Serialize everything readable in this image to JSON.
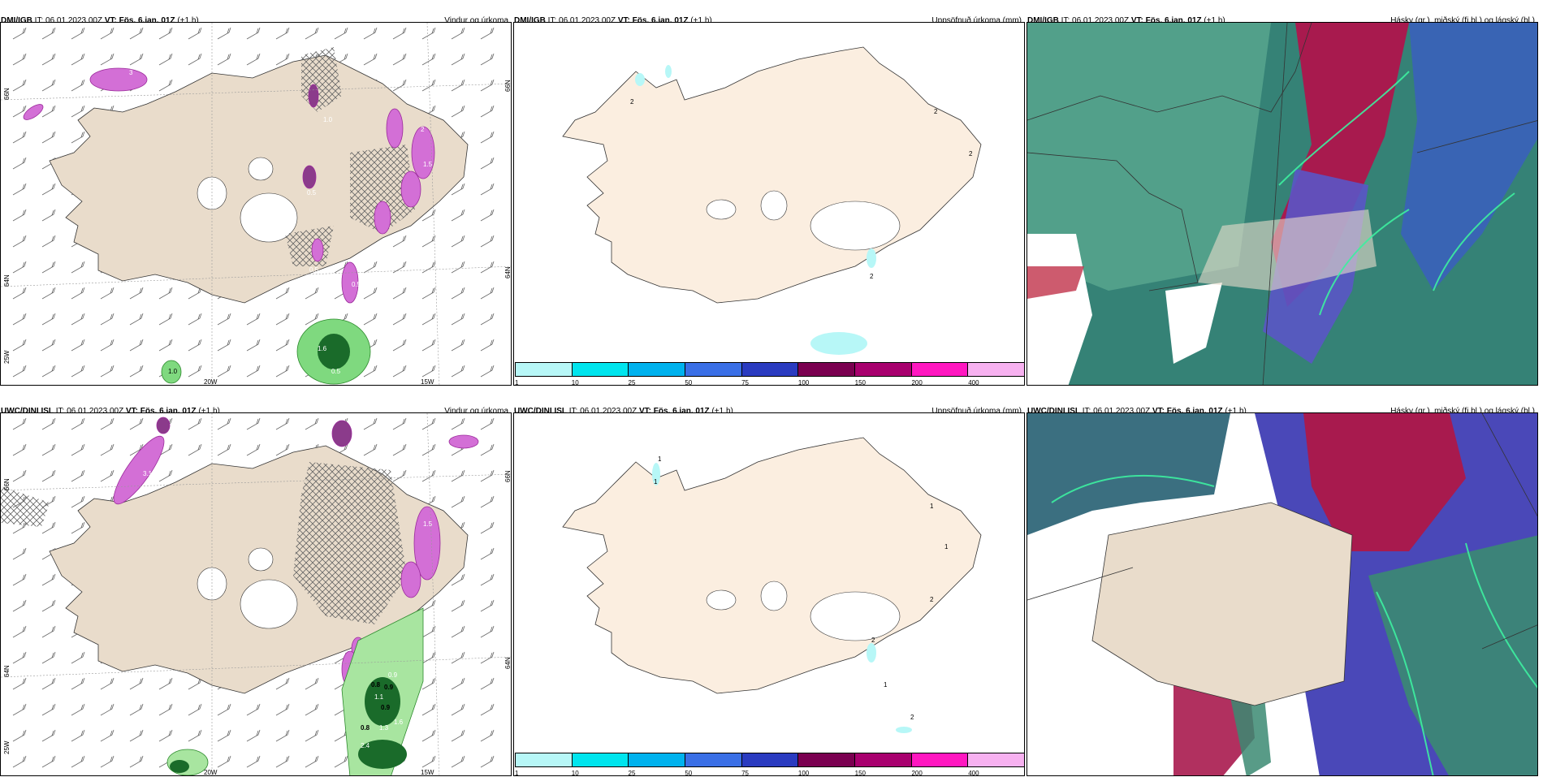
{
  "panels": [
    {
      "model": "DMI/IGB",
      "it_label": "IT:",
      "it_value": "06.01.2023 00Z",
      "vt_label": "VT:",
      "vt_value": "Fös. 6.jan. 01Z",
      "step": "(+1 h)",
      "title": "Vindur og úrkoma"
    },
    {
      "model": "DMI/IGB",
      "it_label": "IT:",
      "it_value": "06.01.2023 00Z",
      "vt_label": "VT:",
      "vt_value": "Fös. 6.jan. 01Z",
      "step": "(+1 h)",
      "title": "Uppsöfnuð úrkoma (mm)"
    },
    {
      "model": "DMI/IGB",
      "it_label": "IT:",
      "it_value": "06.01.2023 00Z",
      "vt_label": "VT:",
      "vt_value": "Fös. 6.jan. 01Z",
      "step": "(+1 h)",
      "title": "Hásky (gr.), miðský (fj.bl.) og lágský (bl.)"
    },
    {
      "model": "UWC/DINI ISL",
      "it_label": "IT:",
      "it_value": "06.01.2023 00Z",
      "vt_label": "VT:",
      "vt_value": "Fös. 6.jan. 01Z",
      "step": "(+1 h)",
      "title": "Vindur og úrkoma"
    },
    {
      "model": "UWC/DINI ISL",
      "it_label": "IT:",
      "it_value": "06.01.2023 00Z",
      "vt_label": "VT:",
      "vt_value": "Fös. 6.jan. 01Z",
      "step": "(+1 h)",
      "title": "Uppsöfnuð úrkoma (mm)"
    },
    {
      "model": "UWC/DINI ISL",
      "it_label": "IT:",
      "it_value": "06.01.2023 00Z",
      "vt_label": "VT:",
      "vt_value": "Fös. 6.jan. 01Z",
      "step": "(+1 h)",
      "title": "Hásky (gr.), miðský (fj.bl.) og lágský (bl.)"
    }
  ],
  "wind_grid_labels": {
    "lon": [
      "20W",
      "15W"
    ],
    "lat_left": [
      "66N",
      "64N",
      "25W"
    ],
    "lat_right": [
      "66N",
      "64N"
    ]
  },
  "precip_values": {
    "top": [
      "3",
      "1.6",
      "0.5",
      "2",
      "1.5",
      "0.5",
      "1.0",
      "0.5",
      "0.5",
      "1.6",
      "0.5",
      "1.0"
    ],
    "bottom": [
      "3.1",
      "0.9",
      "1.5",
      "0.8",
      "0.9",
      "1.1",
      "0.9",
      "0.8",
      "1.3",
      "1.6",
      "2.4"
    ]
  },
  "accum_labels": {
    "top": [
      "2",
      "2",
      "2",
      "2"
    ],
    "bottom": [
      "1",
      "1",
      "1",
      "1",
      "2",
      "2",
      "1",
      "2"
    ]
  },
  "colorbar": {
    "ticks": [
      "1",
      "10",
      "25",
      "50",
      "75",
      "100",
      "150",
      "200",
      "400"
    ],
    "colors": [
      "#b7f7f7",
      "#00e5ee",
      "#00b2ee",
      "#3a6fe6",
      "#2a3bc0",
      "#7a0050",
      "#a8006e",
      "#ff17c0",
      "#f7b1f0"
    ]
  },
  "colors": {
    "land": "#e9dccb",
    "land_light": "#fbeee0",
    "high_cloud": "#3f8a6a",
    "mid_cloud": "#b01a4e",
    "low_cloud": "#3a4fcf"
  }
}
